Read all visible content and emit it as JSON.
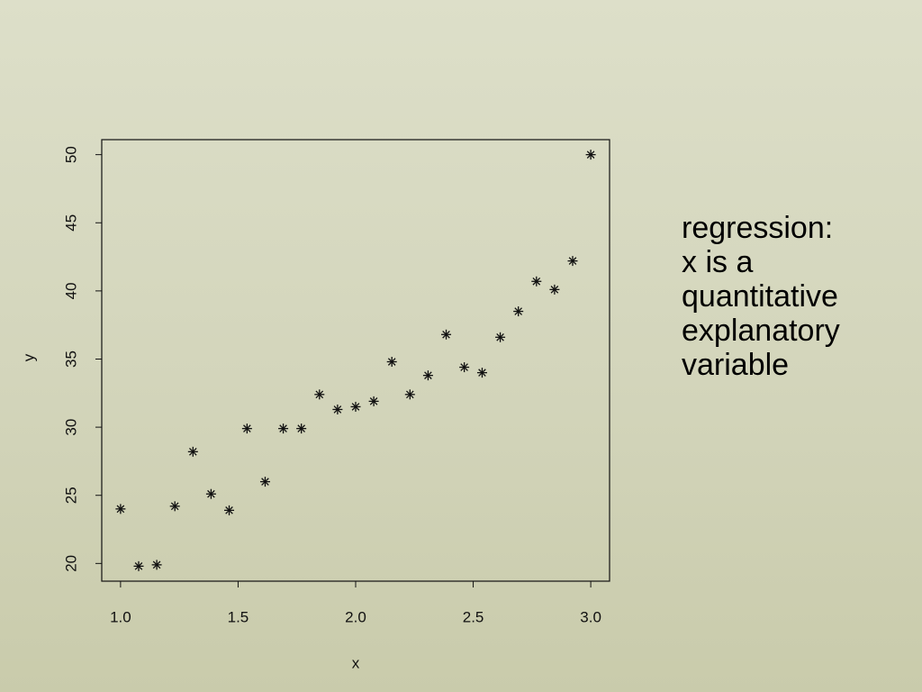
{
  "chart_data": {
    "type": "scatter",
    "marker": "asterisk",
    "color": "#111111",
    "x_label": "x",
    "y_label": "y",
    "x": [
      1.0,
      1.077,
      1.154,
      1.231,
      1.308,
      1.385,
      1.462,
      1.538,
      1.615,
      1.692,
      1.769,
      1.846,
      1.923,
      2.0,
      2.077,
      2.154,
      2.231,
      2.308,
      2.385,
      2.462,
      2.538,
      2.615,
      2.692,
      2.769,
      2.846,
      2.923,
      3.0
    ],
    "values": [
      24.0,
      19.8,
      19.9,
      24.2,
      28.2,
      25.1,
      23.9,
      29.9,
      26.0,
      29.9,
      29.9,
      32.4,
      31.3,
      31.5,
      31.9,
      34.8,
      32.4,
      33.8,
      36.8,
      34.4,
      34.0,
      36.6,
      38.5,
      40.7,
      40.1,
      42.2,
      50.0
    ],
    "xlim": [
      0.92,
      3.08
    ],
    "ylim": [
      18.7,
      51.1
    ],
    "xticks": [
      {
        "value": 1.0,
        "label": "1.0"
      },
      {
        "value": 1.5,
        "label": "1.5"
      },
      {
        "value": 2.0,
        "label": "2.0"
      },
      {
        "value": 2.5,
        "label": "2.5"
      },
      {
        "value": 3.0,
        "label": "3.0"
      }
    ],
    "yticks": [
      20,
      25,
      30,
      35,
      40,
      45,
      50
    ]
  },
  "slide_text": [
    "regression:",
    "x is a",
    "quantitative",
    "explanatory",
    "variable"
  ]
}
